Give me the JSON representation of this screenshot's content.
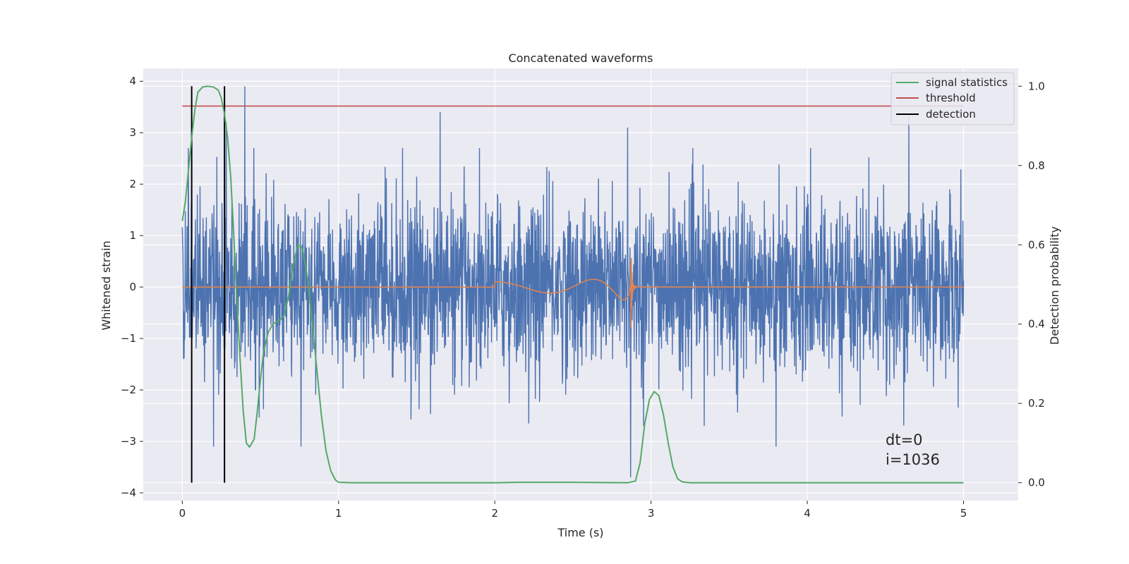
{
  "chart_data": {
    "type": "line",
    "title": "Concatenated waveforms",
    "xlabel": "Time (s)",
    "ylabel": "Whitened strain",
    "y2label": "Detection probability",
    "xlim": [
      -0.25,
      5.35
    ],
    "ylim": [
      -4.15,
      4.25
    ],
    "y2lim": [
      -0.045,
      1.045
    ],
    "x_ticks": [
      0,
      1,
      2,
      3,
      4,
      5
    ],
    "x_tick_labels": [
      "0",
      "1",
      "2",
      "3",
      "4",
      "5"
    ],
    "y_ticks": [
      -4,
      -3,
      -2,
      -1,
      0,
      1,
      2,
      3,
      4
    ],
    "y_tick_labels": [
      "−4",
      "−3",
      "−2",
      "−1",
      "0",
      "1",
      "2",
      "3",
      "4"
    ],
    "y2_ticks": [
      0.0,
      0.2,
      0.4,
      0.6,
      0.8,
      1.0
    ],
    "y2_tick_labels": [
      "0.0",
      "0.2",
      "0.4",
      "0.6",
      "0.8",
      "1.0"
    ],
    "grid": true,
    "legend_position": "top-right",
    "series": [
      {
        "name": "strain",
        "axis": "left",
        "color": "#4c72b0",
        "description": "whitened detector noise, approx. uniform amplitude over 0-5 s",
        "x_range": [
          0,
          5
        ],
        "typical_amplitude": 1.5,
        "notable_spikes": [
          {
            "x": 0.4,
            "y": 3.9
          },
          {
            "x": 0.28,
            "y": 3.2
          },
          {
            "x": 0.2,
            "y": 3.0
          },
          {
            "x": 1.65,
            "y": 3.4
          },
          {
            "x": 2.85,
            "y": 3.1
          },
          {
            "x": 4.65,
            "y": 3.3
          },
          {
            "x": 0.2,
            "y": -3.1
          },
          {
            "x": 0.76,
            "y": -3.1
          },
          {
            "x": 2.87,
            "y": -3.7
          },
          {
            "x": 3.8,
            "y": -3.1
          }
        ]
      },
      {
        "name": "injected signal",
        "axis": "left",
        "color": "#dd8452",
        "description": "chirp from 2.0 s to merger at ~2.87 s, zero elsewhere",
        "chirp_start": 2.0,
        "merger_time": 2.87,
        "start_amplitude": 0.1,
        "peak_amplitude": 1.1
      },
      {
        "name": "signal statistics",
        "axis": "right",
        "color": "#55a868",
        "x": [
          0,
          0.02,
          0.04,
          0.06,
          0.08,
          0.1,
          0.13,
          0.16,
          0.2,
          0.23,
          0.25,
          0.27,
          0.29,
          0.31,
          0.33,
          0.35,
          0.37,
          0.39,
          0.41,
          0.43,
          0.46,
          0.48,
          0.5,
          0.52,
          0.55,
          0.58,
          0.62,
          0.65,
          0.68,
          0.71,
          0.74,
          0.77,
          0.8,
          0.83,
          0.86,
          0.89,
          0.92,
          0.95,
          0.98,
          1.0,
          1.1,
          1.5,
          2.0,
          2.15,
          2.5,
          2.85,
          2.9,
          2.93,
          2.96,
          2.99,
          3.02,
          3.05,
          3.08,
          3.11,
          3.14,
          3.17,
          3.2,
          3.25,
          3.5,
          4.0,
          4.5,
          5.0
        ],
        "y": [
          0.66,
          0.71,
          0.79,
          0.87,
          0.94,
          0.985,
          0.998,
          1.0,
          0.998,
          0.99,
          0.97,
          0.93,
          0.87,
          0.77,
          0.62,
          0.45,
          0.31,
          0.18,
          0.1,
          0.09,
          0.11,
          0.18,
          0.26,
          0.33,
          0.38,
          0.4,
          0.41,
          0.42,
          0.47,
          0.55,
          0.6,
          0.59,
          0.52,
          0.41,
          0.29,
          0.17,
          0.08,
          0.03,
          0.007,
          0.001,
          0.0,
          0.0,
          0.0,
          0.001,
          0.001,
          0.0,
          0.004,
          0.05,
          0.15,
          0.21,
          0.23,
          0.22,
          0.17,
          0.1,
          0.04,
          0.01,
          0.002,
          0.0,
          0.0,
          0.0,
          0.0,
          0.0
        ]
      },
      {
        "name": "threshold",
        "axis": "right",
        "color": "#c44e52",
        "x": [
          0,
          5
        ],
        "y": [
          0.95,
          0.95
        ]
      },
      {
        "name": "detection",
        "axis": "right",
        "color": "#000000",
        "x_positions": [
          0.06,
          0.27
        ],
        "y_range": [
          0.0,
          1.0
        ]
      }
    ],
    "legend": [
      {
        "label": "signal statistics",
        "color": "#55a868"
      },
      {
        "label": "threshold",
        "color": "#c44e52"
      },
      {
        "label": "detection",
        "color": "#000000"
      }
    ],
    "annotations": [
      {
        "text": "dt=0",
        "x": 4.5,
        "y": -2.9
      },
      {
        "text": "i=1036",
        "x": 4.5,
        "y": -3.3
      }
    ]
  }
}
